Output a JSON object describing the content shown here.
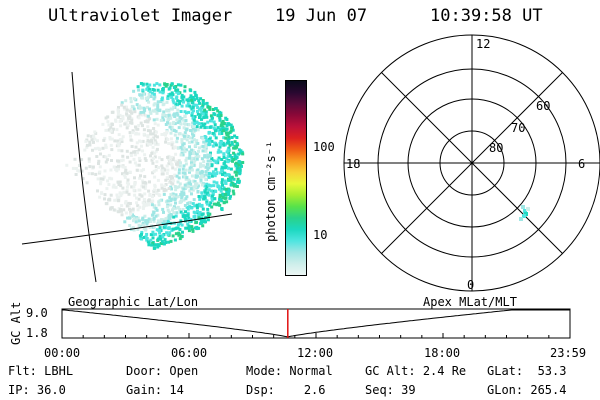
{
  "header": {
    "title": "Ultraviolet Imager",
    "date": "19 Jun 07",
    "time": "10:39:58 UT"
  },
  "colorbar": {
    "label": "photon cm⁻²s⁻¹",
    "ticks": [
      "100",
      "10"
    ],
    "scale": "log",
    "colors": [
      "#ecf6f4",
      "#cdeeea",
      "#9fe6e4",
      "#4ee5e0",
      "#1cd8c0",
      "#2ad28a",
      "#58e24a",
      "#a8ee30",
      "#e8f83a",
      "#f8d238",
      "#f89c20",
      "#ee5a14",
      "#dc2020",
      "#bc1038",
      "#8c0838",
      "#5a0a3a",
      "#280830",
      "#0a0a1a"
    ]
  },
  "polar": {
    "hour_labels": {
      "top": "12",
      "left": "18",
      "right": "6",
      "bottom": "0"
    },
    "lat_labels": [
      "60",
      "70",
      "80"
    ]
  },
  "timeline": {
    "left_label": "Geographic Lat/Lon",
    "right_label": "Apex MLat/MLT",
    "y_label": "GC Alt",
    "y_ticks": [
      "9.0",
      "1.8"
    ],
    "x_ticks": [
      "00:00",
      "06:00",
      "12:00",
      "18:00",
      "23:59"
    ],
    "current_time_fraction": 0.4444
  },
  "status": [
    [
      {
        "label": "Flt:",
        "value": "LBHL"
      },
      {
        "label": "Door:",
        "value": "Open"
      },
      {
        "label": "Mode:",
        "value": "Normal"
      },
      {
        "label": "GC Alt:",
        "value": "2.4 Re"
      },
      {
        "label": "GLat:",
        "value": "53.3"
      }
    ],
    [
      {
        "label": "IP:",
        "value": "36.0"
      },
      {
        "label": "Gain:",
        "value": "14"
      },
      {
        "label": "Dsp:",
        "value": "2.6"
      },
      {
        "label": "Seq:",
        "value": "39"
      },
      {
        "label": "GLon:",
        "value": "265.4"
      }
    ]
  ]
}
